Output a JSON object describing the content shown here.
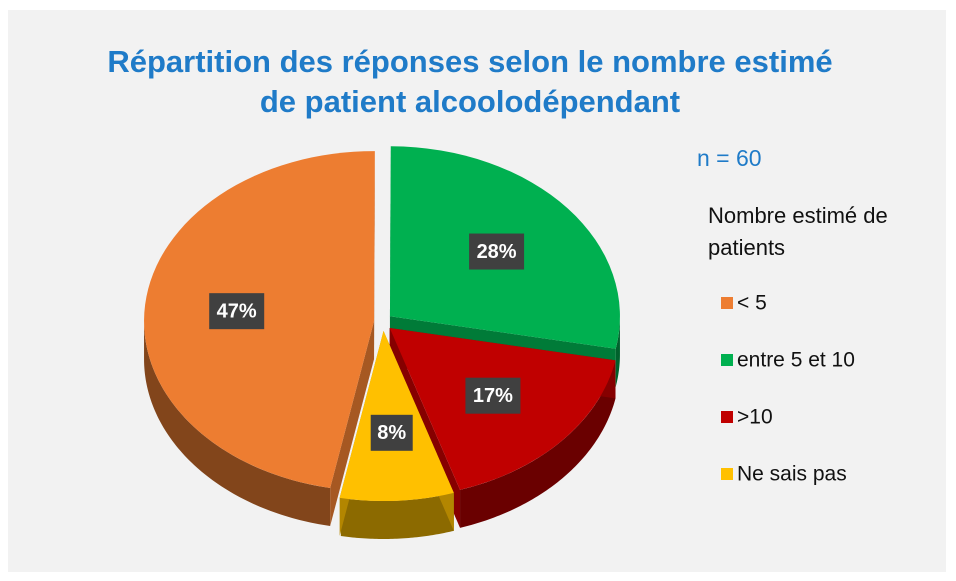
{
  "chart_data": {
    "type": "pie",
    "title": "Répartition des réponses selon le nombre estimé de patient alcoolodépendant",
    "annotation": "n = 60",
    "legend_title": "Nombre estimé de patients",
    "categories": [
      "< 5",
      "entre 5 et 10",
      ">10",
      "Ne sais pas"
    ],
    "values": [
      47,
      28,
      17,
      8
    ],
    "value_labels": [
      "47%",
      "28%",
      "17%",
      "8%"
    ],
    "colors": [
      "#ED7D31",
      "#00B050",
      "#C00000",
      "#FFC000"
    ],
    "legend": "right"
  }
}
